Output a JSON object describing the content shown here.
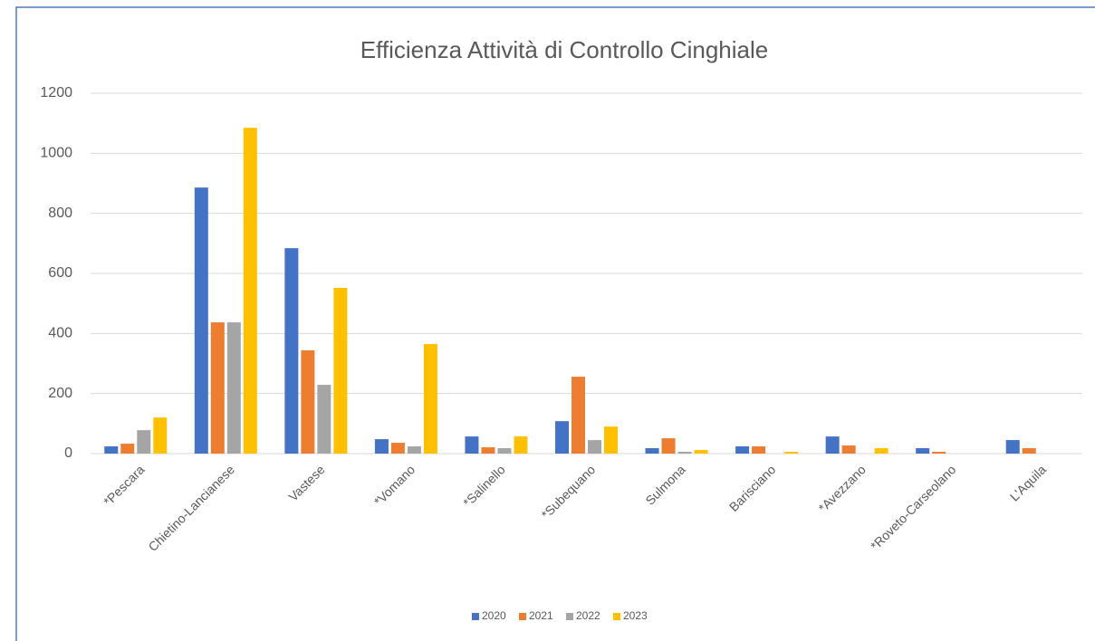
{
  "chart_data": {
    "type": "bar",
    "title": "Efficienza Attività di Controllo Cinghiale",
    "categories": [
      "*Pescara",
      "Chietino-Lancianese",
      "Vastese",
      "*Vomano",
      "*Salinello",
      "*Subequano",
      "Sulmona",
      "Barisciano",
      "*Avezzano",
      "*Roveto-Carseolano",
      "L'Aquila"
    ],
    "series": [
      {
        "name": "2020",
        "color": "#4472c4",
        "values": [
          24,
          886,
          684,
          48,
          57,
          108,
          18,
          24,
          57,
          18,
          45
        ]
      },
      {
        "name": "2021",
        "color": "#ed7d31",
        "values": [
          33,
          437,
          344,
          36,
          21,
          256,
          51,
          24,
          27,
          6,
          18
        ]
      },
      {
        "name": "2022",
        "color": "#a5a5a5",
        "values": [
          78,
          437,
          229,
          24,
          18,
          45,
          6,
          0,
          0,
          0,
          0
        ]
      },
      {
        "name": "2023",
        "color": "#ffc000",
        "values": [
          120,
          1085,
          552,
          365,
          57,
          90,
          12,
          6,
          18,
          0,
          0
        ]
      }
    ],
    "ylim": [
      0,
      1200
    ],
    "yticks": [
      0,
      200,
      400,
      600,
      800,
      1000,
      1200
    ],
    "grid": true,
    "legend": "bottom"
  }
}
